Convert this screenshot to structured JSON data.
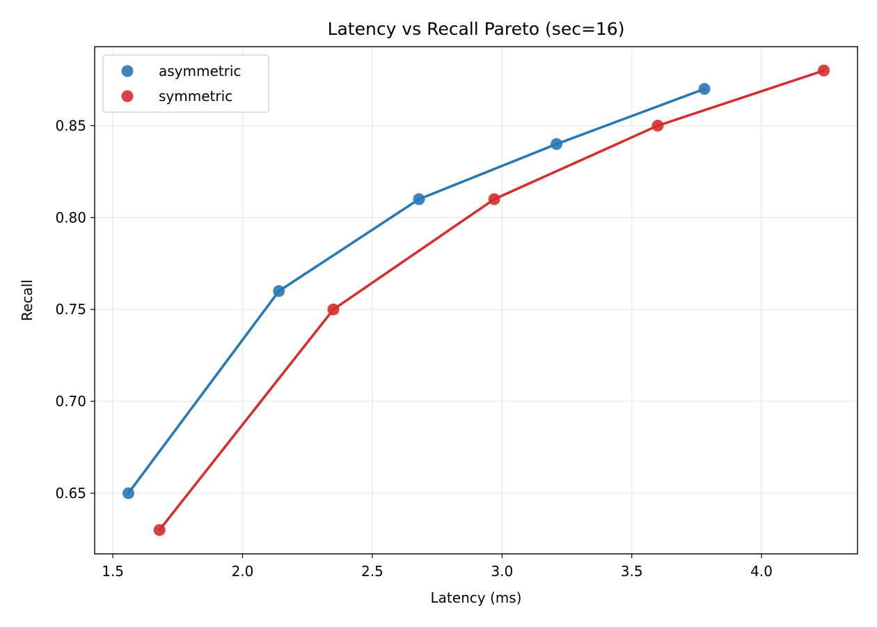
{
  "chart_data": {
    "type": "line",
    "title": "Latency vs Recall Pareto (sec=16)",
    "xlabel": "Latency (ms)",
    "ylabel": "Recall",
    "xlim": [
      1.43,
      4.37
    ],
    "ylim": [
      0.617,
      0.893
    ],
    "xticks": [
      1.5,
      2.0,
      2.5,
      3.0,
      3.5,
      4.0
    ],
    "xtick_labels": [
      "1.5",
      "2.0",
      "2.5",
      "3.0",
      "3.5",
      "4.0"
    ],
    "yticks": [
      0.65,
      0.7,
      0.75,
      0.8,
      0.85
    ],
    "ytick_labels": [
      "0.65",
      "0.70",
      "0.75",
      "0.80",
      "0.85"
    ],
    "grid": true,
    "legend_position": "top-left",
    "series": [
      {
        "name": "asymmetric",
        "color": "#2878b5",
        "x": [
          1.56,
          2.14,
          2.68,
          3.21,
          3.78
        ],
        "y": [
          0.65,
          0.76,
          0.81,
          0.84,
          0.87
        ]
      },
      {
        "name": "symmetric",
        "color": "#d62e2e",
        "x": [
          1.68,
          2.35,
          2.97,
          3.6,
          4.24
        ],
        "y": [
          0.63,
          0.75,
          0.81,
          0.85,
          0.88
        ]
      }
    ]
  }
}
